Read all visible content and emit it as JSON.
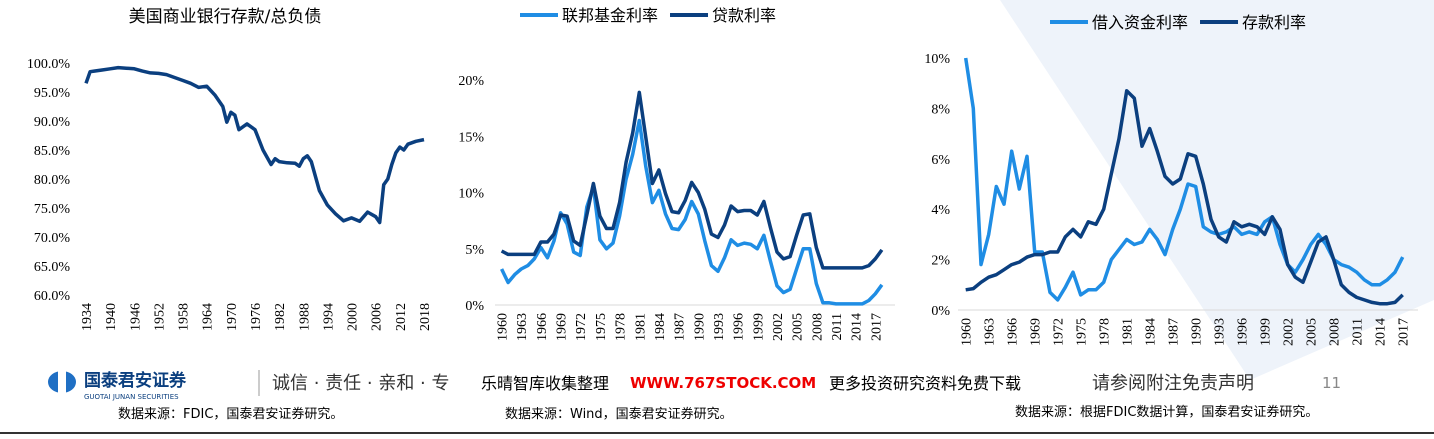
{
  "chart_data": [
    {
      "type": "line",
      "title": "美国商业银行存款/总负债",
      "source": "数据来源：FDIC，国泰君安证券研究。",
      "x": [
        1934,
        1935,
        1936,
        1938,
        1940,
        1942,
        1944,
        1946,
        1948,
        1950,
        1952,
        1954,
        1956,
        1958,
        1960,
        1962,
        1964,
        1966,
        1968,
        1969,
        1970,
        1971,
        1972,
        1974,
        1976,
        1978,
        1980,
        1981,
        1982,
        1984,
        1986,
        1987,
        1988,
        1989,
        1990,
        1992,
        1994,
        1996,
        1998,
        2000,
        2002,
        2004,
        2006,
        2007,
        2008,
        2009,
        2010,
        2011,
        2012,
        2013,
        2014,
        2016,
        2018
      ],
      "values": [
        96.5,
        98.5,
        98.6,
        98.8,
        99,
        99.2,
        99.1,
        99,
        98.6,
        98.3,
        98.2,
        98,
        97.5,
        97,
        96.5,
        95.8,
        96,
        94.5,
        92.5,
        89.8,
        91.5,
        91,
        88.5,
        89.5,
        88.5,
        85,
        82.5,
        83.5,
        83,
        82.8,
        82.7,
        82.2,
        83.5,
        84,
        83,
        78,
        75.5,
        74,
        72.8,
        73.3,
        72.7,
        74.3,
        73.5,
        72.5,
        79,
        80,
        82.5,
        84.5,
        85.5,
        85,
        86,
        86.5,
        86.8
      ],
      "color": "#0b3f7f",
      "xlim": [
        1932,
        2020
      ],
      "xticks": [
        1934,
        1940,
        1946,
        1952,
        1958,
        1964,
        1970,
        1976,
        1982,
        1988,
        1994,
        2000,
        2006,
        2012,
        2018
      ],
      "ylim": [
        60,
        100
      ],
      "yticks": [
        {
          "value": 60,
          "label": "60.0%"
        },
        {
          "value": 65,
          "label": "65.0%"
        },
        {
          "value": 70,
          "label": "70.0%"
        },
        {
          "value": 75,
          "label": "75.0%"
        },
        {
          "value": 80,
          "label": "80.0%"
        },
        {
          "value": 85,
          "label": "85.0%"
        },
        {
          "value": 90,
          "label": "90.0%"
        },
        {
          "value": 95,
          "label": "95.0%"
        },
        {
          "value": 100,
          "label": "100.0%"
        }
      ]
    },
    {
      "type": "line",
      "source": "数据来源：Wind，国泰君安证券研究。",
      "x": [
        1960,
        1961,
        1962,
        1963,
        1964,
        1965,
        1966,
        1967,
        1968,
        1969,
        1970,
        1971,
        1972,
        1973,
        1974,
        1975,
        1976,
        1977,
        1978,
        1979,
        1980,
        1981,
        1982,
        1983,
        1984,
        1985,
        1986,
        1987,
        1988,
        1989,
        1990,
        1991,
        1992,
        1993,
        1994,
        1995,
        1996,
        1997,
        1998,
        1999,
        2000,
        2001,
        2002,
        2003,
        2004,
        2005,
        2006,
        2007,
        2008,
        2009,
        2010,
        2011,
        2012,
        2013,
        2014,
        2015,
        2016,
        2017,
        2018
      ],
      "series": [
        {
          "name": "联邦基金利率",
          "color": "#1f8de4",
          "values": [
            3.2,
            2.0,
            2.7,
            3.2,
            3.5,
            4.1,
            5.1,
            4.2,
            5.7,
            8.2,
            7.2,
            4.7,
            4.4,
            8.7,
            10.5,
            5.8,
            5.0,
            5.5,
            7.9,
            11.2,
            13.4,
            16.4,
            12.3,
            9.1,
            10.2,
            8.1,
            6.8,
            6.7,
            7.6,
            9.2,
            8.1,
            5.7,
            3.5,
            3.0,
            4.2,
            5.8,
            5.3,
            5.5,
            5.4,
            5.0,
            6.2,
            3.9,
            1.7,
            1.1,
            1.4,
            3.2,
            5.0,
            5.0,
            1.9,
            0.2,
            0.2,
            0.1,
            0.1,
            0.1,
            0.1,
            0.1,
            0.4,
            1.0,
            1.8
          ]
        },
        {
          "name": "贷款利率",
          "color": "#0b3f7f",
          "values": [
            4.8,
            4.5,
            4.5,
            4.5,
            4.5,
            4.5,
            5.6,
            5.6,
            6.3,
            8.0,
            7.9,
            5.7,
            5.3,
            8.0,
            10.8,
            7.9,
            6.8,
            6.8,
            9.1,
            12.7,
            15.3,
            18.9,
            14.9,
            10.8,
            12.0,
            9.9,
            8.3,
            8.2,
            9.3,
            10.9,
            10.0,
            8.5,
            6.3,
            6.0,
            7.1,
            8.8,
            8.3,
            8.4,
            8.4,
            8.0,
            9.2,
            6.9,
            4.7,
            4.1,
            4.3,
            6.2,
            8.0,
            8.1,
            5.1,
            3.3,
            3.3,
            3.3,
            3.3,
            3.3,
            3.3,
            3.3,
            3.5,
            4.1,
            4.9
          ]
        }
      ],
      "xlim": [
        1959,
        2020
      ],
      "xticks": [
        1960,
        1963,
        1966,
        1969,
        1972,
        1975,
        1978,
        1981,
        1984,
        1987,
        1990,
        1993,
        1996,
        1999,
        2002,
        2005,
        2008,
        2011,
        2014,
        2017
      ],
      "ylim": [
        0,
        20
      ],
      "yticks": [
        {
          "value": 0,
          "label": "0%"
        },
        {
          "value": 5,
          "label": "5%"
        },
        {
          "value": 10,
          "label": "10%"
        },
        {
          "value": 15,
          "label": "15%"
        },
        {
          "value": 20,
          "label": "20%"
        }
      ]
    },
    {
      "type": "line",
      "source": "数据来源：根据FDIC数据计算，国泰君安证券研究。",
      "x": [
        1960,
        1961,
        1962,
        1963,
        1964,
        1965,
        1966,
        1967,
        1968,
        1969,
        1970,
        1971,
        1972,
        1973,
        1974,
        1975,
        1976,
        1977,
        1978,
        1979,
        1980,
        1981,
        1982,
        1983,
        1984,
        1985,
        1986,
        1987,
        1988,
        1989,
        1990,
        1991,
        1992,
        1993,
        1994,
        1995,
        1996,
        1997,
        1998,
        1999,
        2000,
        2001,
        2002,
        2003,
        2004,
        2005,
        2006,
        2007,
        2008,
        2009,
        2010,
        2011,
        2012,
        2013,
        2014,
        2015,
        2016,
        2017
      ],
      "series": [
        {
          "name": "借入资金利率",
          "color": "#1f8de4",
          "values": [
            10,
            8.0,
            1.8,
            3.0,
            4.9,
            4.2,
            6.3,
            4.8,
            6.1,
            2.3,
            2.3,
            0.7,
            0.4,
            0.9,
            1.5,
            0.6,
            0.8,
            0.8,
            1.1,
            2.0,
            2.4,
            2.8,
            2.6,
            2.7,
            3.2,
            2.8,
            2.2,
            3.2,
            4.0,
            5.0,
            4.9,
            3.3,
            3.1,
            3.0,
            3.1,
            3.3,
            3.0,
            3.1,
            3.0,
            3.5,
            3.7,
            2.6,
            1.8,
            1.5,
            2.0,
            2.6,
            3.0,
            2.6,
            2.0,
            1.8,
            1.7,
            1.5,
            1.2,
            1.0,
            1.0,
            1.2,
            1.5,
            2.1
          ]
        },
        {
          "name": "存款利率",
          "color": "#0b3f7f",
          "values": [
            0.8,
            0.85,
            1.1,
            1.3,
            1.4,
            1.6,
            1.8,
            1.9,
            2.1,
            2.2,
            2.2,
            2.3,
            2.3,
            2.9,
            3.2,
            2.9,
            3.5,
            3.4,
            4.0,
            5.4,
            6.8,
            8.7,
            8.4,
            6.5,
            7.2,
            6.3,
            5.3,
            5.0,
            5.2,
            6.2,
            6.1,
            5.0,
            3.6,
            2.9,
            2.7,
            3.5,
            3.3,
            3.4,
            3.3,
            3.0,
            3.7,
            3.2,
            1.8,
            1.3,
            1.1,
            1.9,
            2.7,
            2.9,
            2.0,
            1.0,
            0.7,
            0.5,
            0.4,
            0.3,
            0.25,
            0.25,
            0.3,
            0.6
          ]
        }
      ],
      "xlim": [
        1959,
        2019
      ],
      "xticks": [
        1960,
        1963,
        1966,
        1969,
        1972,
        1975,
        1978,
        1981,
        1984,
        1987,
        1990,
        1993,
        1996,
        1999,
        2002,
        2005,
        2008,
        2011,
        2014,
        2017
      ],
      "ylim": [
        0,
        10
      ],
      "yticks": [
        {
          "value": 0,
          "label": "0%"
        },
        {
          "value": 2,
          "label": "2%"
        },
        {
          "value": 4,
          "label": "4%"
        },
        {
          "value": 6,
          "label": "6%"
        },
        {
          "value": 8,
          "label": "8%"
        },
        {
          "value": 10,
          "label": "10%"
        }
      ]
    }
  ],
  "footer": {
    "company": "国泰君安证券",
    "company_en": "GUOTAI JUNAN SECURITIES",
    "motto": "诚信 · 责任 · 亲和 · 专",
    "watermark": "乐晴智库收集整理",
    "url": "WWW.767STOCK.COM",
    "promo": "更多投资研究资料免费下载",
    "disclaimer": "请参阅附注免责声明",
    "page": "11"
  }
}
